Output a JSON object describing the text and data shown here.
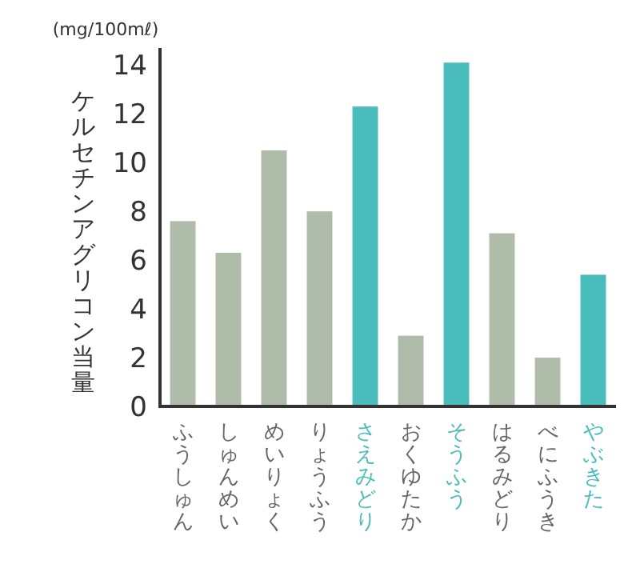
{
  "chart_data": {
    "type": "bar",
    "ylabel": "ケルセチンアグリコン当量",
    "annotations": [
      "(mg/100mℓ)"
    ],
    "categories": [
      "ふうしゅん",
      "しゅんめい",
      "めいりょく",
      "りょうふう",
      "さえみどり",
      "おくゆたか",
      "そうふう",
      "はるみどり",
      "べにふうき",
      "やぶきた"
    ],
    "values": [
      7.6,
      6.3,
      10.5,
      8.0,
      12.3,
      2.9,
      14.1,
      7.1,
      2.0,
      5.4
    ],
    "colors": [
      "#b0bcaa",
      "#b0bcaa",
      "#b0bcaa",
      "#b0bcaa",
      "#4bbcbc",
      "#b0bcaa",
      "#4bbcbc",
      "#b0bcaa",
      "#b0bcaa",
      "#4bbcbc"
    ],
    "ylim": [
      0,
      14.7
    ],
    "yticks": [
      0,
      2,
      4,
      6,
      8,
      10,
      12,
      14
    ]
  }
}
